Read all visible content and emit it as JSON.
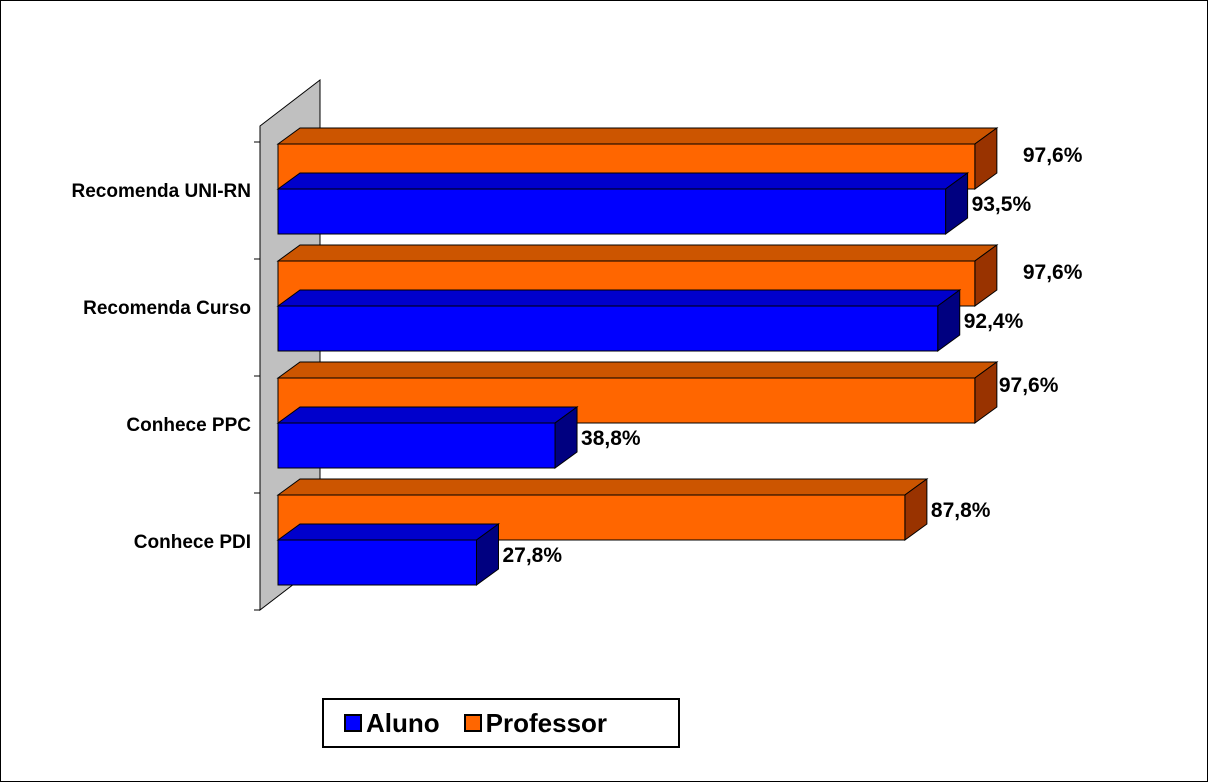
{
  "chart_data": {
    "type": "bar",
    "orientation": "horizontal",
    "three_d": true,
    "categories": [
      "Recomenda UNI-RN",
      "Recomenda Curso",
      "Conhece PPC",
      "Conhece PDI"
    ],
    "series": [
      {
        "name": "Professor",
        "values": [
          97.6,
          97.6,
          97.6,
          87.8
        ],
        "labels": [
          "97,6%",
          "97,6%",
          "97,6%",
          "87,8%"
        ],
        "color": "#FF6600",
        "top_color": "#CC5500",
        "side_color": "#993300"
      },
      {
        "name": "Aluno",
        "values": [
          93.5,
          92.4,
          38.8,
          27.8
        ],
        "labels": [
          "93,5%",
          "92,4%",
          "38,8%",
          "27,8%"
        ],
        "color": "#0000FF",
        "top_color": "#0000CC",
        "side_color": "#000080"
      }
    ],
    "xlim": [
      0,
      100
    ],
    "grid": false,
    "legend_position": "bottom",
    "wall_color": "#C0C0C0"
  },
  "legend": {
    "items": [
      {
        "label": "Aluno",
        "color": "#0000FF"
      },
      {
        "label": "Professor",
        "color": "#FF6600"
      }
    ]
  }
}
